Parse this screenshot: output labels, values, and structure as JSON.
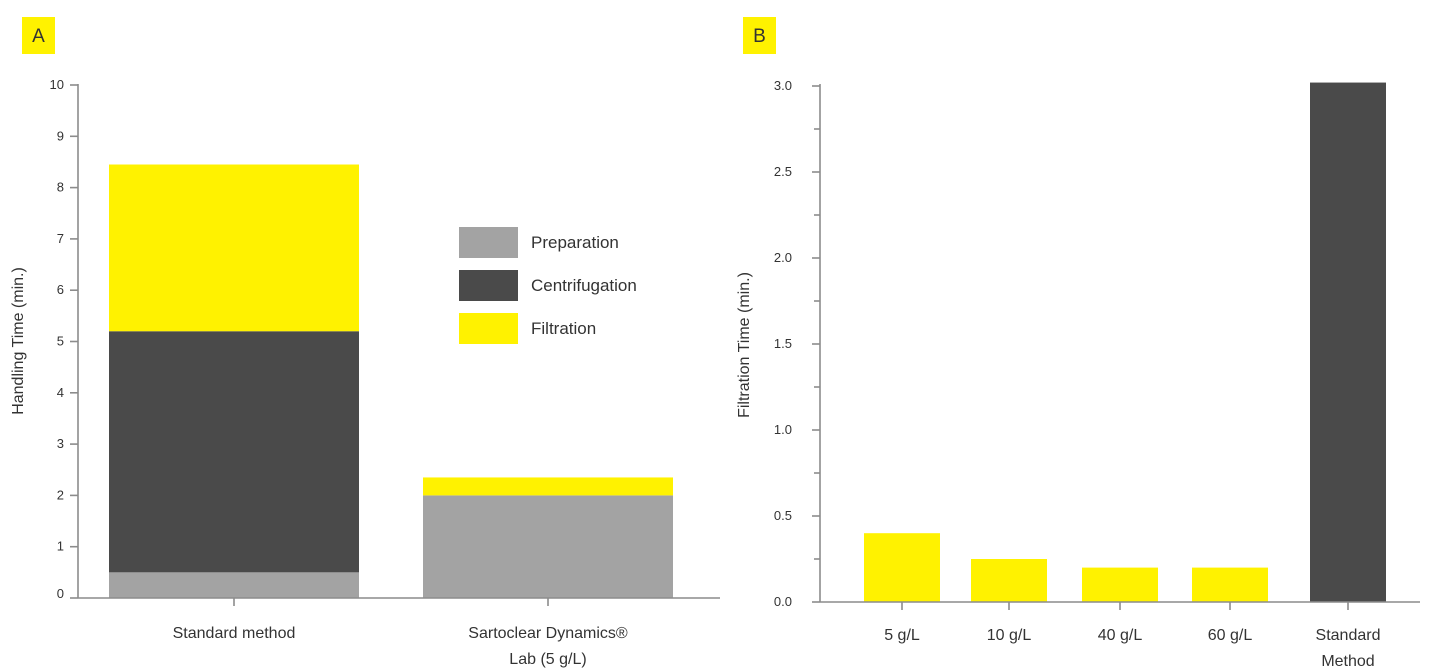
{
  "colors": {
    "preparation": "#a3a3a3",
    "centrifugation": "#4a4a4a",
    "filtration": "#fff200",
    "axis": "#8c8c8c",
    "text": "#333333"
  },
  "chart_data": [
    {
      "panel": "A",
      "type": "bar",
      "stacked": true,
      "ylabel": "Handling Time (min.)",
      "ylim": [
        0,
        10
      ],
      "yticks": [
        "0",
        "1",
        "2",
        "3",
        "4",
        "5",
        "6",
        "7",
        "8",
        "9",
        "10"
      ],
      "categories": [
        "Standard method",
        "Sartoclear Dynamics® Lab (5 g/L)"
      ],
      "category_lines": [
        [
          "Standard method"
        ],
        [
          "Sartoclear Dynamics®",
          "Lab (5 g/L)"
        ]
      ],
      "series": [
        {
          "name": "Preparation",
          "color": "#a3a3a3",
          "values": [
            0.5,
            2.0
          ]
        },
        {
          "name": "Centrifugation",
          "color": "#4a4a4a",
          "values": [
            4.7,
            0
          ]
        },
        {
          "name": "Filtration",
          "color": "#fff200",
          "values": [
            3.25,
            0.35
          ]
        }
      ],
      "legend_position": "right"
    },
    {
      "panel": "B",
      "type": "bar",
      "ylabel": "Filtration Time (min.)",
      "ylim": [
        0,
        3.0
      ],
      "yticks": [
        "0.0",
        "0.5",
        "1.0",
        "1.5",
        "2.0",
        "2.5",
        "3.0"
      ],
      "categories": [
        "5 g/L",
        "10 g/L",
        "40 g/L",
        "60 g/L",
        "Standard Method"
      ],
      "category_lines": [
        [
          "5 g/L"
        ],
        [
          "10 g/L"
        ],
        [
          "40 g/L"
        ],
        [
          "60 g/L"
        ],
        [
          "Standard",
          "Method"
        ]
      ],
      "values": [
        0.4,
        0.25,
        0.2,
        0.2,
        3.02
      ],
      "bar_colors": [
        "#fff200",
        "#fff200",
        "#fff200",
        "#fff200",
        "#4a4a4a"
      ]
    }
  ]
}
